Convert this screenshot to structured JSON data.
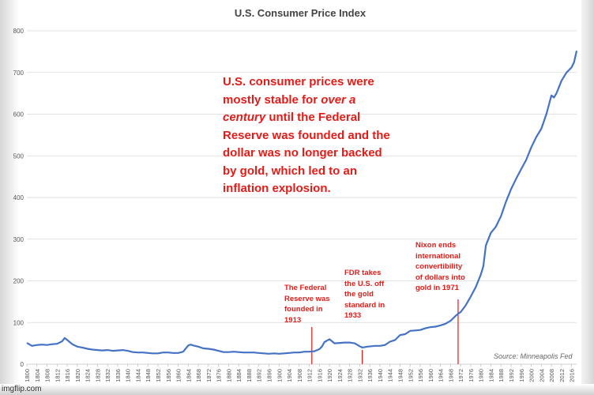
{
  "chart_data": {
    "type": "line",
    "title": "U.S. Consumer Price Index",
    "xlabel": "",
    "ylabel": "",
    "xlim": [
      1800,
      2018
    ],
    "ylim": [
      0,
      800
    ],
    "yticks": [
      0,
      100,
      200,
      300,
      400,
      500,
      600,
      700,
      800
    ],
    "xticks": [
      1800,
      1804,
      1808,
      1812,
      1816,
      1820,
      1824,
      1828,
      1832,
      1836,
      1840,
      1844,
      1848,
      1852,
      1856,
      1860,
      1864,
      1868,
      1872,
      1876,
      1880,
      1884,
      1888,
      1892,
      1896,
      1900,
      1904,
      1908,
      1912,
      1916,
      1920,
      1924,
      1928,
      1932,
      1936,
      1940,
      1944,
      1948,
      1952,
      1956,
      1960,
      1964,
      1968,
      1972,
      1976,
      1980,
      1984,
      1988,
      1992,
      1996,
      2000,
      2004,
      2008,
      2012,
      2016
    ],
    "grid": true,
    "series": [
      {
        "color": "#4472c4",
        "x": [
          1800,
          1802,
          1804,
          1806,
          1808,
          1810,
          1812,
          1814,
          1815,
          1816,
          1818,
          1820,
          1822,
          1824,
          1826,
          1828,
          1830,
          1832,
          1834,
          1836,
          1838,
          1840,
          1842,
          1844,
          1846,
          1848,
          1850,
          1852,
          1854,
          1856,
          1858,
          1860,
          1862,
          1864,
          1865,
          1866,
          1868,
          1870,
          1872,
          1874,
          1876,
          1878,
          1880,
          1882,
          1884,
          1886,
          1888,
          1890,
          1892,
          1894,
          1896,
          1898,
          1900,
          1902,
          1904,
          1906,
          1908,
          1910,
          1912,
          1914,
          1916,
          1917,
          1918,
          1920,
          1922,
          1924,
          1926,
          1928,
          1930,
          1932,
          1933,
          1935,
          1938,
          1940,
          1942,
          1944,
          1946,
          1948,
          1950,
          1952,
          1954,
          1956,
          1958,
          1960,
          1962,
          1964,
          1966,
          1968,
          1970,
          1971,
          1972,
          1974,
          1976,
          1978,
          1980,
          1981,
          1982,
          1984,
          1986,
          1988,
          1990,
          1992,
          1994,
          1996,
          1998,
          2000,
          2002,
          2004,
          2006,
          2008,
          2009,
          2010,
          2012,
          2014,
          2016,
          2017,
          2018
        ],
        "y": [
          51,
          44,
          46,
          47,
          46,
          48,
          49,
          55,
          63,
          58,
          48,
          42,
          40,
          37,
          35,
          34,
          33,
          34,
          32,
          33,
          34,
          32,
          29,
          28,
          28,
          27,
          26,
          26,
          28,
          28,
          27,
          27,
          30,
          45,
          47,
          45,
          42,
          38,
          37,
          35,
          32,
          29,
          29,
          30,
          29,
          28,
          28,
          28,
          27,
          26,
          25,
          26,
          25,
          26,
          27,
          28,
          28,
          30,
          30,
          31,
          36,
          42,
          53,
          60,
          50,
          51,
          52,
          52,
          50,
          43,
          40,
          42,
          44,
          44,
          46,
          54,
          58,
          70,
          72,
          80,
          81,
          82,
          86,
          89,
          90,
          93,
          97,
          104,
          116,
          121,
          125,
          141,
          162,
          185,
          215,
          235,
          285,
          315,
          330,
          355,
          390,
          420,
          445,
          468,
          490,
          520,
          545,
          565,
          600,
          645,
          640,
          650,
          680,
          700,
          712,
          725,
          752
        ]
      }
    ],
    "annotations": {
      "main": [
        "U.S. consumer prices were",
        "mostly stable for |over a|",
        "|century| until the Federal",
        "Reserve was founded and the",
        "dollar was no longer backed",
        "by gold, which led to an",
        "inflation explosion."
      ],
      "fed": [
        "The Federal",
        "Reserve was",
        "founded in",
        "1913"
      ],
      "fdr": [
        "FDR takes",
        "the U.S. off",
        "the gold",
        "standard in",
        "1933"
      ],
      "nixon": [
        "Nixon ends",
        "international",
        "convertibility",
        "of dollars into",
        "gold in 1971"
      ]
    },
    "source": "Source: Minneapolis Fed"
  },
  "watermark": "imgflip.com",
  "colors": {
    "line": "#4472c4",
    "annotation": "#e41b17",
    "grid": "#d9d9d9"
  }
}
